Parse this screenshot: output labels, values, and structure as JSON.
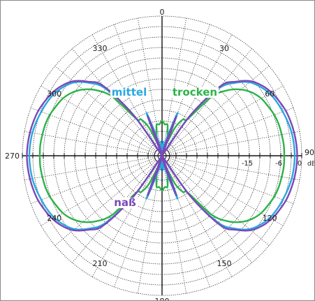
{
  "chart_data": {
    "type": "polar",
    "angle_unit": "degrees",
    "angle_zero": "top",
    "angle_direction": "clockwise",
    "angle_step": 30,
    "radial_axis": {
      "unit": "dB",
      "min_db": -40,
      "max_db": 0,
      "rings_db": [
        0,
        -3,
        -6,
        -9,
        -12,
        -15,
        -18,
        -21,
        -24,
        -27,
        -30,
        -33,
        -36
      ],
      "labeled_rings_db": [
        {
          "db": 0,
          "label": "0"
        },
        {
          "db": -6,
          "label": "-6"
        },
        {
          "db": -15,
          "label": "-15"
        }
      ],
      "unit_label": "dB"
    },
    "angle_labels": [
      {
        "deg": 0,
        "label": "0"
      },
      {
        "deg": 30,
        "label": "30"
      },
      {
        "deg": 60,
        "label": "60"
      },
      {
        "deg": 90,
        "label": "90"
      },
      {
        "deg": 120,
        "label": "120"
      },
      {
        "deg": 150,
        "label": "150"
      },
      {
        "deg": 180,
        "label": "180"
      },
      {
        "deg": 210,
        "label": "210"
      },
      {
        "deg": 240,
        "label": "240"
      },
      {
        "deg": 270,
        "label": "270"
      },
      {
        "deg": 300,
        "label": "300"
      },
      {
        "deg": 330,
        "label": "330"
      }
    ],
    "grid": true,
    "series": [
      {
        "name": "trocken",
        "color": "#2db34a",
        "angles": [
          0,
          5,
          10,
          15,
          20,
          25,
          30,
          35,
          40,
          45,
          50,
          55,
          60,
          65,
          70,
          75,
          80,
          85,
          90
        ],
        "values_db": [
          -30,
          -31,
          -31,
          -34,
          -36,
          -31,
          -28,
          -27,
          -18,
          -13.5,
          -10.5,
          -8.5,
          -7.2,
          -6.5,
          -5.8,
          -5.4,
          -5.2,
          -5.0,
          -5.0
        ]
      },
      {
        "name": "mittel",
        "color": "#29a8e0",
        "angles": [
          0,
          5,
          10,
          15,
          20,
          25,
          30,
          35,
          40,
          45,
          50,
          55,
          60,
          65,
          70,
          75,
          80,
          85,
          90
        ],
        "values_db": [
          -38,
          -36,
          -40,
          -35,
          -27,
          -40,
          -40,
          -26,
          -15,
          -10.5,
          -7.3,
          -5.6,
          -4.4,
          -3.7,
          -3.2,
          -2.7,
          -2.3,
          -2.1,
          -2.0
        ]
      },
      {
        "name": "naß",
        "color": "#7a48b8",
        "angles": [
          0,
          5,
          10,
          15,
          20,
          25,
          30,
          35,
          40,
          45,
          50,
          55,
          60,
          65,
          70,
          75,
          80,
          85,
          90
        ],
        "values_db": [
          -40,
          -40,
          -40,
          -37,
          -28,
          -40,
          -40,
          -26,
          -14,
          -10,
          -6.8,
          -5.0,
          -3.8,
          -3.0,
          -2.3,
          -1.9,
          -1.6,
          -1.4,
          -1.3
        ]
      }
    ],
    "series_labels": [
      {
        "series": "mittel",
        "text": "mittel",
        "placement": "upper-left"
      },
      {
        "series": "trocken",
        "text": "trocken",
        "placement": "upper-right"
      },
      {
        "series": "naß",
        "text": "naß",
        "placement": "lower-left"
      }
    ]
  }
}
